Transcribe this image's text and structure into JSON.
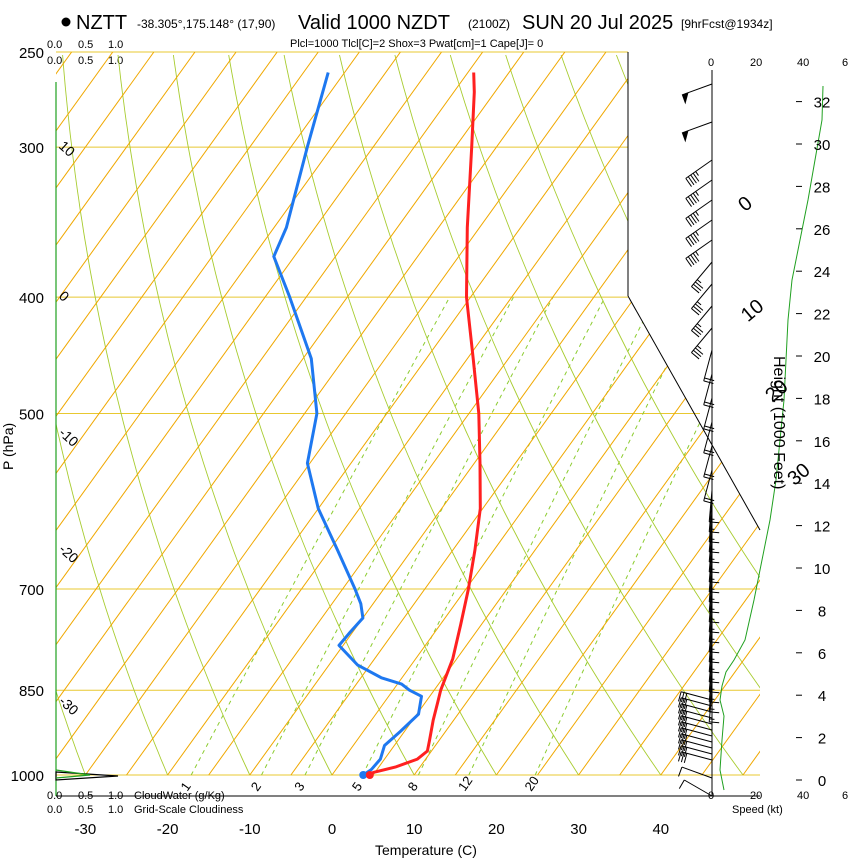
{
  "header": {
    "station": "NZTT",
    "coords": "-38.305°,175.148° (17,90)",
    "valid": "Valid 1000 NZDT",
    "utc": "(2100Z)",
    "date": "SUN 20 Jul 2025",
    "forecast": "[9hrFcst@1934z]",
    "params": "Plcl=1000 Tlcl[C]=2 Shox=3 Pwat[cm]=1 Cape[J]= 0"
  },
  "labels": {
    "pressure_axis": "P (hPa)",
    "temperature_axis": "Temperature (C)",
    "height_axis": "Height (1000 Feet)",
    "speed_axis": "Speed (kt)",
    "cloudwater": "CloudWater (g/Kg)",
    "cloudiness": "Grid-Scale Cloudiness"
  },
  "scales": {
    "cloudwater_ticks": [
      "0.0",
      "0.5",
      "1.0"
    ],
    "cloudiness_ticks": [
      "0.0",
      "0.5",
      "1.0"
    ],
    "speed_ticks": [
      "0",
      "20",
      "40",
      "6"
    ]
  },
  "colors": {
    "temperature": "#ff2020",
    "dewpoint": "#1e78f0",
    "isotherm": "#f0a800",
    "isobar": "#e8c830",
    "dry_adiabat": "#a8cc30",
    "mixing_ratio": "#8ccc30",
    "wind": "#000000",
    "speed": "#20a020",
    "params": "#b0106a"
  },
  "chart_data": {
    "type": "skew-t",
    "pressure_levels": [
      250,
      300,
      400,
      500,
      700,
      850,
      1000
    ],
    "pressure_labels": [
      "250",
      "300",
      "400",
      "500",
      "700",
      "850",
      "1000"
    ],
    "temperature_ticks": [
      -30,
      -20,
      -10,
      0,
      10,
      20,
      30,
      40
    ],
    "temperature_tick_labels": [
      "-30",
      "-20",
      "-10",
      "0",
      "10",
      "20",
      "30",
      "40"
    ],
    "isotherm_labels": [
      "10",
      "0",
      "-10",
      "-20",
      "-30",
      "0",
      "10",
      "20",
      "30"
    ],
    "mixing_ratio_labels": [
      "1",
      "2",
      "3",
      "5",
      "8",
      "12",
      "20"
    ],
    "height_ticks": [
      0,
      2,
      4,
      6,
      8,
      10,
      12,
      14,
      16,
      18,
      20,
      22,
      24,
      26,
      28,
      30,
      32
    ],
    "height_tick_labels": [
      "0",
      "2",
      "4",
      "6",
      "8",
      "10",
      "12",
      "14",
      "16",
      "18",
      "20",
      "22",
      "24",
      "26",
      "28",
      "30",
      "32"
    ],
    "temperature_profile": [
      [
        1000,
        4.6
      ],
      [
        995,
        4.8
      ],
      [
        985,
        7.0
      ],
      [
        970,
        9.0
      ],
      [
        955,
        9.5
      ],
      [
        935,
        8.8
      ],
      [
        900,
        7.5
      ],
      [
        870,
        6.5
      ],
      [
        850,
        5.8
      ],
      [
        800,
        4.5
      ],
      [
        750,
        2.5
      ],
      [
        700,
        0.3
      ],
      [
        650,
        -2.3
      ],
      [
        600,
        -5.3
      ],
      [
        550,
        -9.3
      ],
      [
        500,
        -13.8
      ],
      [
        450,
        -19.3
      ],
      [
        400,
        -25.5
      ],
      [
        350,
        -31.5
      ],
      [
        300,
        -38.0
      ],
      [
        270,
        -42.5
      ],
      [
        260,
        -44.3
      ]
    ],
    "dewpoint_profile": [
      [
        1000,
        3.8
      ],
      [
        990,
        4.3
      ],
      [
        970,
        4.5
      ],
      [
        945,
        3.8
      ],
      [
        920,
        4.5
      ],
      [
        890,
        5.2
      ],
      [
        860,
        4.0
      ],
      [
        850,
        2.0
      ],
      [
        840,
        0.5
      ],
      [
        830,
        -2.5
      ],
      [
        810,
        -6.5
      ],
      [
        780,
        -10.5
      ],
      [
        760,
        -10.3
      ],
      [
        740,
        -10.0
      ],
      [
        720,
        -11.5
      ],
      [
        700,
        -13.5
      ],
      [
        650,
        -19.0
      ],
      [
        600,
        -25.0
      ],
      [
        550,
        -30.3
      ],
      [
        500,
        -33.5
      ],
      [
        450,
        -39.0
      ],
      [
        400,
        -47.0
      ],
      [
        370,
        -52.5
      ],
      [
        350,
        -53.5
      ],
      [
        300,
        -58.0
      ],
      [
        260,
        -62.0
      ]
    ]
  }
}
